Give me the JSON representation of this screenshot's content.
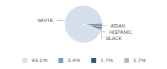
{
  "chart_data": {
    "type": "pie",
    "categories": [
      "WHITE",
      "ASIAN",
      "HISPANIC",
      "BLACK"
    ],
    "values": [
      93.1,
      3.4,
      1.7,
      1.7
    ],
    "value_labels": [
      "93.1%",
      "3.4%",
      "1.7%",
      "1.7%"
    ],
    "colors": [
      "#d5dfea",
      "#7f9ab5",
      "#2f5878",
      "#a8bbce"
    ],
    "legend": "bottom"
  }
}
